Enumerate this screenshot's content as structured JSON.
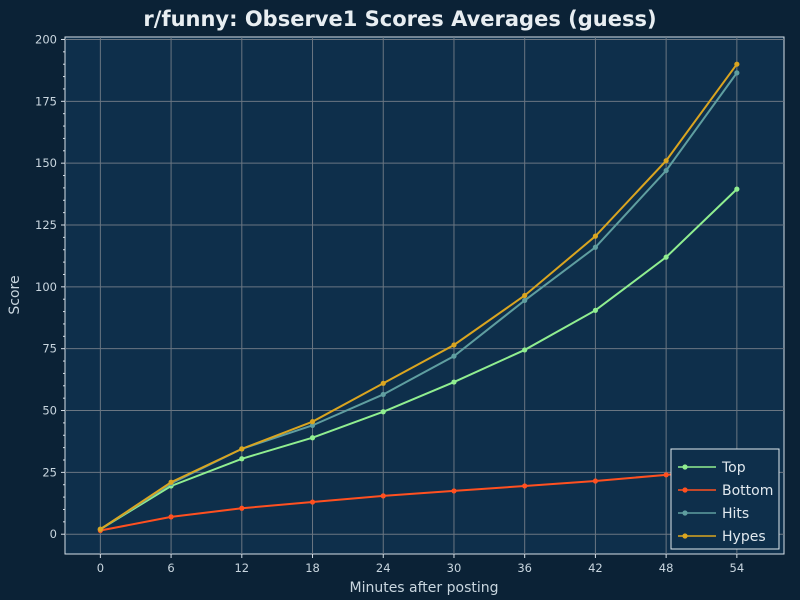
{
  "chart_data": {
    "type": "line",
    "title": "r/funny: Observe1 Scores Averages (guess)",
    "xlabel": "Minutes after posting",
    "ylabel": "Score",
    "x": [
      0,
      6,
      12,
      18,
      24,
      30,
      36,
      42,
      48,
      54
    ],
    "xticks": [
      0,
      6,
      12,
      18,
      24,
      30,
      36,
      42,
      48,
      54
    ],
    "yticks": [
      0,
      25,
      50,
      75,
      100,
      125,
      150,
      175,
      200
    ],
    "xlim": [
      -3,
      58
    ],
    "ylim": [
      -8,
      201
    ],
    "grid": true,
    "legend_position": "bottom-right",
    "series": [
      {
        "name": "Top",
        "color": "#90ee90",
        "values": [
          2,
          19.5,
          30.5,
          39,
          49.5,
          61.5,
          74.5,
          90.5,
          112,
          139.5
        ]
      },
      {
        "name": "Bottom",
        "color": "#ff5020",
        "values": [
          1.5,
          7,
          10.5,
          13,
          15.5,
          17.5,
          19.5,
          21.5,
          24,
          26.5
        ]
      },
      {
        "name": "Hits",
        "color": "#5f9ea0",
        "values": [
          2,
          20.5,
          34.5,
          44,
          56.5,
          72,
          94.5,
          116,
          147,
          186.5
        ]
      },
      {
        "name": "Hypes",
        "color": "#daa520",
        "values": [
          2,
          21,
          34.5,
          45.5,
          61,
          76.5,
          96.5,
          120.5,
          151,
          190
        ]
      }
    ]
  }
}
